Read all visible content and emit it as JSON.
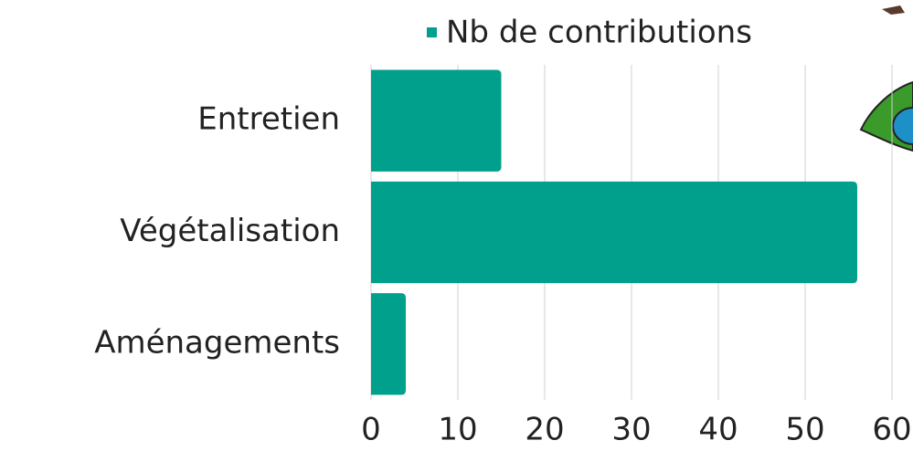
{
  "chart_data": {
    "type": "bar",
    "orientation": "horizontal",
    "categories": [
      "Entretien",
      "Végétalisation",
      "Aménagements"
    ],
    "series": [
      {
        "name": "Nb de contributions",
        "color": "#00a08c",
        "values": [
          15,
          56,
          4
        ]
      }
    ],
    "xlim": [
      0,
      60
    ],
    "xticks": [
      0,
      10,
      20,
      30,
      40,
      50,
      60
    ],
    "grid": true,
    "legend": "top"
  }
}
